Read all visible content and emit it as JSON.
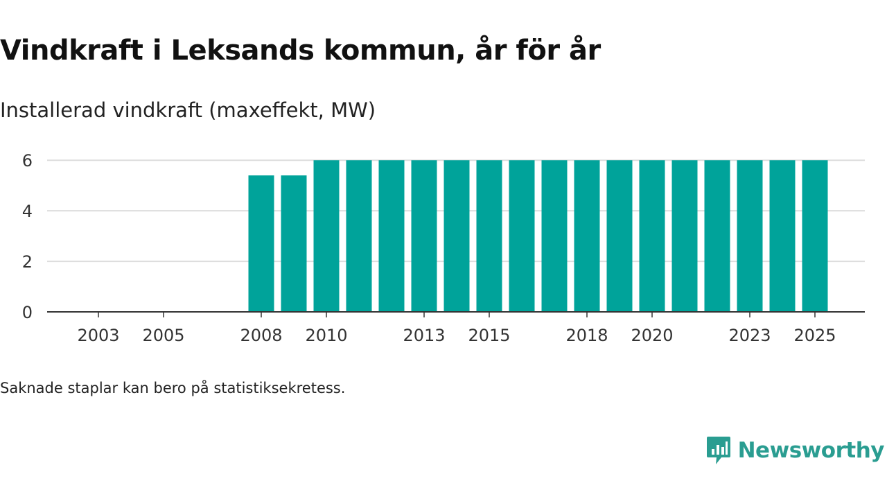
{
  "title": "Vindkraft i Leksands kommun, år för år",
  "subtitle": "Installerad vindkraft (maxeffekt, MW)",
  "note": "Saknade staplar kan bero på statistiksekretess.",
  "brand": "Newsworthy",
  "colors": {
    "bar": "#00a39a",
    "grid": "#dddddd",
    "axis": "#333333",
    "brand": "#2a9d91"
  },
  "chart_data": {
    "type": "bar",
    "title": "Vindkraft i Leksands kommun, år för år",
    "ylabel": "Installerad vindkraft (maxeffekt, MW)",
    "xlabel": "",
    "ylim": [
      0,
      6.5
    ],
    "yticks": [
      0,
      2,
      4,
      6
    ],
    "categories": [
      2002,
      2003,
      2004,
      2005,
      2006,
      2007,
      2008,
      2009,
      2010,
      2011,
      2012,
      2013,
      2014,
      2015,
      2016,
      2017,
      2018,
      2019,
      2020,
      2021,
      2022,
      2023,
      2024,
      2025
    ],
    "values": [
      null,
      null,
      null,
      null,
      null,
      null,
      5.4,
      5.4,
      6,
      6,
      6,
      6,
      6,
      6,
      6,
      6,
      6,
      6,
      6,
      6,
      6,
      6,
      6,
      6
    ],
    "xtick_labels": [
      "2003",
      "2005",
      "2008",
      "2010",
      "2013",
      "2015",
      "2018",
      "2020",
      "2023",
      "2025"
    ],
    "grid": true
  }
}
